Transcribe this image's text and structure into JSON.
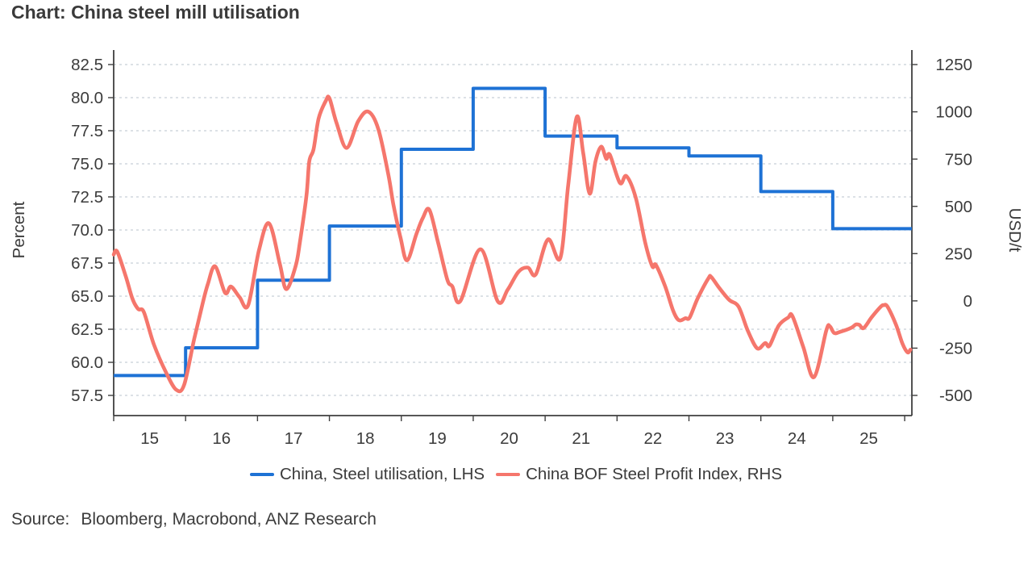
{
  "title": "Chart: China steel mill utilisation",
  "source": {
    "label": "Source:",
    "text": "Bloomberg, Macrobond, ANZ Research"
  },
  "legend": [
    {
      "label": "China, Steel utilisation, LHS",
      "color": "#1E72D5"
    },
    {
      "label": "China BOF Steel Profit Index, RHS",
      "color": "#F5766C"
    }
  ],
  "colors": {
    "utilisation_line": "#1E72D5",
    "profit_line": "#F5766C",
    "grid": "#C6CFD8",
    "axis": "#3F3F3F",
    "text": "#3B3B3B"
  },
  "chart_data": {
    "type": "line",
    "title": "Chart: China steel mill utilisation",
    "grid": "horizontal-dashed",
    "legend_position": "bottom-center",
    "x_axis": {
      "min": 2015.0,
      "max": 2026.1,
      "tick_years": [
        2015,
        2016,
        2017,
        2018,
        2019,
        2020,
        2021,
        2022,
        2023,
        2024,
        2025,
        2026
      ],
      "labels": [
        {
          "text": "15",
          "center": 2015.5
        },
        {
          "text": "16",
          "center": 2016.5
        },
        {
          "text": "17",
          "center": 2017.5
        },
        {
          "text": "18",
          "center": 2018.5
        },
        {
          "text": "19",
          "center": 2019.5
        },
        {
          "text": "20",
          "center": 2020.5
        },
        {
          "text": "21",
          "center": 2021.5
        },
        {
          "text": "22",
          "center": 2022.5
        },
        {
          "text": "23",
          "center": 2023.5
        },
        {
          "text": "24",
          "center": 2024.5
        },
        {
          "text": "25",
          "center": 2025.5
        }
      ]
    },
    "left_axis": {
      "label": "Percent",
      "tick_values": [
        57.5,
        60.0,
        62.5,
        65.0,
        67.5,
        70.0,
        72.5,
        75.0,
        77.5,
        80.0,
        82.5
      ],
      "tick_labels": [
        "57.5",
        "60.0",
        "62.5",
        "65.0",
        "67.5",
        "70.0",
        "72.5",
        "75.0",
        "77.5",
        "80.0",
        "82.5"
      ]
    },
    "right_axis": {
      "label": "USD/t",
      "tick_values": [
        -500,
        -250,
        0,
        250,
        500,
        750,
        1000,
        1250
      ],
      "tick_labels": [
        "-500",
        "-250",
        "0",
        "250",
        "500",
        "750",
        "1000",
        "1250"
      ]
    },
    "series": [
      {
        "name": "China, Steel utilisation, LHS",
        "axis": "left",
        "style": "step",
        "color": "#1E72D5",
        "steps": [
          [
            2015,
            59.0
          ],
          [
            2016,
            61.1
          ],
          [
            2017,
            66.2
          ],
          [
            2018,
            70.3
          ],
          [
            2019,
            76.1
          ],
          [
            2020,
            80.7
          ],
          [
            2021,
            77.1
          ],
          [
            2022,
            76.2
          ],
          [
            2023,
            75.6
          ],
          [
            2024,
            72.9
          ],
          [
            2025,
            70.1
          ]
        ],
        "end_year": 2026.1
      },
      {
        "name": "China BOF Steel Profit Index, RHS",
        "axis": "right",
        "style": "smooth",
        "color": "#F5766C",
        "points": [
          [
            2015.0,
            245
          ],
          [
            2015.05,
            260
          ],
          [
            2015.17,
            127
          ],
          [
            2015.26,
            12
          ],
          [
            2015.34,
            -43
          ],
          [
            2015.42,
            -60
          ],
          [
            2015.56,
            -231
          ],
          [
            2015.73,
            -380
          ],
          [
            2015.87,
            -470
          ],
          [
            2015.98,
            -444
          ],
          [
            2016.12,
            -201
          ],
          [
            2016.24,
            -9
          ],
          [
            2016.31,
            89
          ],
          [
            2016.41,
            183
          ],
          [
            2016.55,
            42
          ],
          [
            2016.63,
            76
          ],
          [
            2016.75,
            20
          ],
          [
            2016.87,
            -23
          ],
          [
            2017.02,
            268
          ],
          [
            2017.16,
            410
          ],
          [
            2017.31,
            197
          ],
          [
            2017.4,
            62
          ],
          [
            2017.53,
            183
          ],
          [
            2017.59,
            311
          ],
          [
            2017.68,
            553
          ],
          [
            2017.72,
            738
          ],
          [
            2017.78,
            802
          ],
          [
            2017.85,
            965
          ],
          [
            2017.95,
            1058
          ],
          [
            2018.0,
            1072
          ],
          [
            2018.1,
            940
          ],
          [
            2018.24,
            809
          ],
          [
            2018.4,
            950
          ],
          [
            2018.54,
            1001
          ],
          [
            2018.68,
            909
          ],
          [
            2018.82,
            667
          ],
          [
            2018.89,
            510
          ],
          [
            2018.99,
            332
          ],
          [
            2019.08,
            214
          ],
          [
            2019.21,
            354
          ],
          [
            2019.3,
            439
          ],
          [
            2019.39,
            482
          ],
          [
            2019.51,
            311
          ],
          [
            2019.64,
            112
          ],
          [
            2019.71,
            76
          ],
          [
            2019.82,
            -2
          ],
          [
            2020.1,
            273
          ],
          [
            2020.34,
            -2
          ],
          [
            2020.48,
            60
          ],
          [
            2020.63,
            154
          ],
          [
            2020.76,
            176
          ],
          [
            2020.87,
            140
          ],
          [
            2021.04,
            325
          ],
          [
            2021.21,
            226
          ],
          [
            2021.32,
            610
          ],
          [
            2021.44,
            973
          ],
          [
            2021.53,
            781
          ],
          [
            2021.62,
            567
          ],
          [
            2021.7,
            738
          ],
          [
            2021.78,
            816
          ],
          [
            2021.85,
            752
          ],
          [
            2021.9,
            773
          ],
          [
            2022.04,
            624
          ],
          [
            2022.13,
            660
          ],
          [
            2022.26,
            546
          ],
          [
            2022.39,
            311
          ],
          [
            2022.49,
            183
          ],
          [
            2022.54,
            190
          ],
          [
            2022.67,
            76
          ],
          [
            2022.78,
            -52
          ],
          [
            2022.86,
            -102
          ],
          [
            2022.95,
            -92
          ],
          [
            2023.01,
            -88
          ],
          [
            2023.12,
            12
          ],
          [
            2023.27,
            119
          ],
          [
            2023.31,
            126
          ],
          [
            2023.42,
            69
          ],
          [
            2023.56,
            5
          ],
          [
            2023.69,
            -31
          ],
          [
            2023.82,
            -159
          ],
          [
            2023.95,
            -251
          ],
          [
            2024.06,
            -223
          ],
          [
            2024.12,
            -237
          ],
          [
            2024.25,
            -130
          ],
          [
            2024.38,
            -88
          ],
          [
            2024.44,
            -81
          ],
          [
            2024.59,
            -244
          ],
          [
            2024.74,
            -403
          ],
          [
            2024.91,
            -156
          ],
          [
            2024.96,
            -135
          ],
          [
            2025.02,
            -170
          ],
          [
            2025.11,
            -163
          ],
          [
            2025.26,
            -142
          ],
          [
            2025.32,
            -125
          ],
          [
            2025.37,
            -127
          ],
          [
            2025.43,
            -144
          ],
          [
            2025.54,
            -87
          ],
          [
            2025.67,
            -30
          ],
          [
            2025.71,
            -23
          ],
          [
            2025.76,
            -30
          ],
          [
            2025.88,
            -127
          ],
          [
            2025.97,
            -227
          ],
          [
            2026.04,
            -272
          ],
          [
            2026.08,
            -258
          ]
        ]
      }
    ]
  }
}
